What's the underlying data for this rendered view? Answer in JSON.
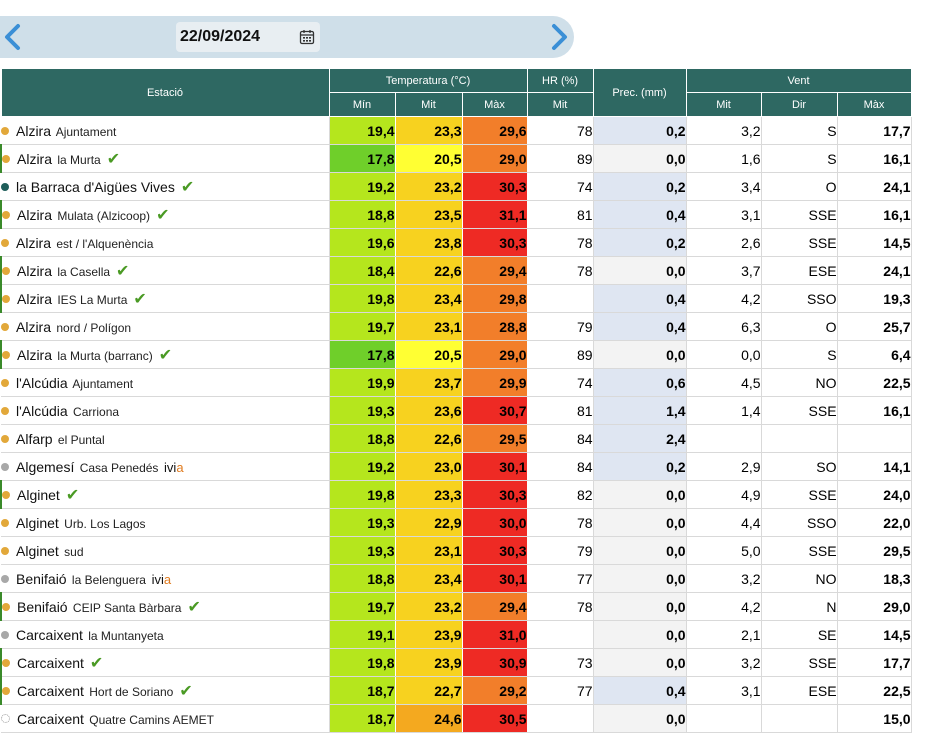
{
  "date_bar": {
    "date": "22/09/2024",
    "prev_icon": "chevron-left-icon",
    "next_icon": "chevron-right-icon",
    "calendar_icon": "calendar-icon"
  },
  "header": {
    "station": "Estació",
    "temperature": "Temperatura (°C)",
    "hr": "HR (%)",
    "prec": "Prec. (mm)",
    "wind": "Vent",
    "t_min": "Mín",
    "t_mit": "Mit",
    "t_max": "Màx",
    "hr_mit": "Mit",
    "w_mit": "Mit",
    "w_dir": "Dir",
    "w_max": "Màx"
  },
  "colors": {
    "header_bg": "#2e6862",
    "dot_orange": "#e2a83a",
    "dot_teal": "#1f5e5a",
    "dot_gray": "#a8a8a8",
    "check_green": "#4a9a24",
    "prec_shaded": "#dfe6f2"
  },
  "rows": [
    {
      "name": "Alzira",
      "sub": "Ajuntament",
      "check": false,
      "ivia": false,
      "dot": "orange",
      "bar": false,
      "min": "19,4",
      "mit": "23,3",
      "max": "29,6",
      "hr": "78",
      "prec": "0,2",
      "wmit": "3,2",
      "wdir": "S",
      "wmax": "17,7"
    },
    {
      "name": "Alzira",
      "sub": "la Murta",
      "check": true,
      "ivia": false,
      "dot": "orange",
      "bar": true,
      "min": "17,8",
      "mit": "20,5",
      "max": "29,0",
      "hr": "89",
      "prec": "0,0",
      "wmit": "1,6",
      "wdir": "S",
      "wmax": "16,1"
    },
    {
      "name": "la Barraca d'Aigües Vives",
      "sub": "",
      "check": true,
      "ivia": false,
      "dot": "teal",
      "bar": false,
      "min": "19,2",
      "mit": "23,2",
      "max": "30,3",
      "hr": "74",
      "prec": "0,2",
      "wmit": "3,4",
      "wdir": "O",
      "wmax": "24,1"
    },
    {
      "name": "Alzira",
      "sub": "Mulata (Alzicoop)",
      "check": true,
      "ivia": false,
      "dot": "orange",
      "bar": true,
      "min": "18,8",
      "mit": "23,5",
      "max": "31,1",
      "hr": "81",
      "prec": "0,4",
      "wmit": "3,1",
      "wdir": "SSE",
      "wmax": "16,1"
    },
    {
      "name": "Alzira",
      "sub": "est / l'Alquenència",
      "check": false,
      "ivia": false,
      "dot": "orange",
      "bar": false,
      "min": "19,6",
      "mit": "23,8",
      "max": "30,3",
      "hr": "78",
      "prec": "0,2",
      "wmit": "2,6",
      "wdir": "SSE",
      "wmax": "14,5"
    },
    {
      "name": "Alzira",
      "sub": "la Casella",
      "check": true,
      "ivia": false,
      "dot": "orange",
      "bar": true,
      "min": "18,4",
      "mit": "22,6",
      "max": "29,4",
      "hr": "78",
      "prec": "0,0",
      "wmit": "3,7",
      "wdir": "ESE",
      "wmax": "24,1"
    },
    {
      "name": "Alzira",
      "sub": "IES La Murta",
      "check": true,
      "ivia": false,
      "dot": "orange",
      "bar": true,
      "min": "19,8",
      "mit": "23,4",
      "max": "29,8",
      "hr": "",
      "prec": "0,4",
      "wmit": "4,2",
      "wdir": "SSO",
      "wmax": "19,3"
    },
    {
      "name": "Alzira",
      "sub": "nord / Polígon",
      "check": false,
      "ivia": false,
      "dot": "orange",
      "bar": false,
      "min": "19,7",
      "mit": "23,1",
      "max": "28,8",
      "hr": "79",
      "prec": "0,4",
      "wmit": "6,3",
      "wdir": "O",
      "wmax": "25,7"
    },
    {
      "name": "Alzira",
      "sub": "la Murta (barranc)",
      "check": true,
      "ivia": false,
      "dot": "orange",
      "bar": true,
      "min": "17,8",
      "mit": "20,5",
      "max": "29,0",
      "hr": "89",
      "prec": "0,0",
      "wmit": "0,0",
      "wdir": "S",
      "wmax": "6,4"
    },
    {
      "name": "l'Alcúdia",
      "sub": "Ajuntament",
      "check": false,
      "ivia": false,
      "dot": "orange",
      "bar": false,
      "min": "19,9",
      "mit": "23,7",
      "max": "29,9",
      "hr": "74",
      "prec": "0,6",
      "wmit": "4,5",
      "wdir": "NO",
      "wmax": "22,5"
    },
    {
      "name": "l'Alcúdia",
      "sub": "Carriona",
      "check": false,
      "ivia": false,
      "dot": "orange",
      "bar": false,
      "min": "19,3",
      "mit": "23,6",
      "max": "30,7",
      "hr": "81",
      "prec": "1,4",
      "wmit": "1,4",
      "wdir": "SSE",
      "wmax": "16,1"
    },
    {
      "name": "Alfarp",
      "sub": "el Puntal",
      "check": false,
      "ivia": false,
      "dot": "orange",
      "bar": false,
      "min": "18,8",
      "mit": "22,6",
      "max": "29,5",
      "hr": "84",
      "prec": "2,4",
      "wmit": "",
      "wdir": "",
      "wmax": ""
    },
    {
      "name": "Algemesí",
      "sub": "Casa Penedés",
      "check": false,
      "ivia": true,
      "ivia_text": "ivi",
      "ivia_a": "a",
      "dot": "gray",
      "bar": false,
      "min": "19,2",
      "mit": "23,0",
      "max": "30,1",
      "hr": "84",
      "prec": "0,2",
      "wmit": "2,9",
      "wdir": "SO",
      "wmax": "14,1"
    },
    {
      "name": "Alginet",
      "sub": "",
      "check": true,
      "ivia": false,
      "dot": "orange",
      "bar": true,
      "min": "19,8",
      "mit": "23,3",
      "max": "30,3",
      "hr": "82",
      "prec": "0,0",
      "wmit": "4,9",
      "wdir": "SSE",
      "wmax": "24,0"
    },
    {
      "name": "Alginet",
      "sub": "Urb. Los Lagos",
      "check": false,
      "ivia": false,
      "dot": "orange",
      "bar": false,
      "min": "19,3",
      "mit": "22,9",
      "max": "30,0",
      "hr": "78",
      "prec": "0,0",
      "wmit": "4,4",
      "wdir": "SSO",
      "wmax": "22,0"
    },
    {
      "name": "Alginet",
      "sub": "sud",
      "check": false,
      "ivia": false,
      "dot": "orange",
      "bar": false,
      "min": "19,3",
      "mit": "23,1",
      "max": "30,3",
      "hr": "79",
      "prec": "0,0",
      "wmit": "5,0",
      "wdir": "SSE",
      "wmax": "29,5"
    },
    {
      "name": "Benifaió",
      "sub": "la Belenguera",
      "check": false,
      "ivia": true,
      "ivia_text": "ivi",
      "ivia_a": "a",
      "dot": "gray",
      "bar": false,
      "min": "18,8",
      "mit": "23,4",
      "max": "30,1",
      "hr": "77",
      "prec": "0,0",
      "wmit": "3,2",
      "wdir": "NO",
      "wmax": "18,3"
    },
    {
      "name": "Benifaió",
      "sub": "CEIP Santa Bàrbara",
      "check": true,
      "ivia": false,
      "dot": "orange",
      "bar": true,
      "min": "19,7",
      "mit": "23,2",
      "max": "29,4",
      "hr": "78",
      "prec": "0,0",
      "wmit": "4,2",
      "wdir": "N",
      "wmax": "29,0"
    },
    {
      "name": "Carcaixent",
      "sub": "la Muntanyeta",
      "check": false,
      "ivia": false,
      "dot": "gray",
      "bar": false,
      "min": "19,1",
      "mit": "23,9",
      "max": "31,0",
      "hr": "",
      "prec": "0,0",
      "wmit": "2,1",
      "wdir": "SE",
      "wmax": "14,5"
    },
    {
      "name": "Carcaixent",
      "sub": "",
      "check": true,
      "ivia": false,
      "dot": "orange",
      "bar": true,
      "min": "19,8",
      "mit": "23,9",
      "max": "30,9",
      "hr": "73",
      "prec": "0,0",
      "wmit": "3,2",
      "wdir": "SSE",
      "wmax": "17,7"
    },
    {
      "name": "Carcaixent",
      "sub": "Hort de Soriano",
      "check": true,
      "ivia": false,
      "dot": "orange",
      "bar": true,
      "min": "18,7",
      "mit": "22,7",
      "max": "29,2",
      "hr": "77",
      "prec": "0,4",
      "wmit": "3,1",
      "wdir": "ESE",
      "wmax": "22,5"
    },
    {
      "name": "Carcaixent",
      "sub": "Quatre Camins AEMET",
      "check": false,
      "ivia": false,
      "dot": "empty",
      "bar": false,
      "min": "18,7",
      "mit": "24,6",
      "max": "30,5",
      "hr": "",
      "prec": "0,0",
      "wmit": "",
      "wdir": "",
      "wmax": "15,0"
    }
  ]
}
